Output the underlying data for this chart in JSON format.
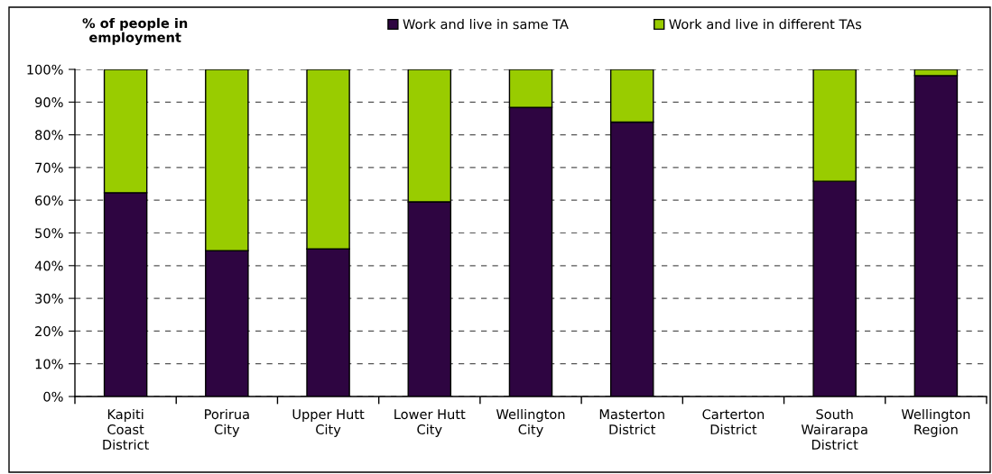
{
  "chart_data": {
    "type": "bar",
    "stacked": true,
    "ylabel": "% of people in\nemployment",
    "categories": [
      "Kapiti\nCoast\nDistrict",
      "Porirua\nCity",
      "Upper Hutt\nCity",
      "Lower Hutt\nCity",
      "Wellington\nCity",
      "Masterton\nDistrict",
      "Carterton\nDistrict",
      "South\nWairarapa\nDistrict",
      "Wellington\nRegion"
    ],
    "series": [
      {
        "name": "Work and live in same TA",
        "color": "#2e0541",
        "values": [
          62.3,
          44.6,
          45.1,
          59.5,
          88.4,
          83.9,
          null,
          65.8,
          98.1
        ]
      },
      {
        "name": "Work and live in different TAs",
        "color": "#99cc00",
        "values": [
          37.7,
          55.4,
          54.9,
          40.5,
          11.6,
          16.1,
          null,
          34.2,
          1.9
        ]
      }
    ],
    "ylim": [
      0,
      100
    ],
    "yticks": [
      {
        "value": 0,
        "label": "0%"
      },
      {
        "value": 10,
        "label": "10%"
      },
      {
        "value": 20,
        "label": "20%"
      },
      {
        "value": 30,
        "label": "30%"
      },
      {
        "value": 40,
        "label": "40%"
      },
      {
        "value": 50,
        "label": "50%"
      },
      {
        "value": 60,
        "label": "60%"
      },
      {
        "value": 70,
        "label": "70%"
      },
      {
        "value": 80,
        "label": "80%"
      },
      {
        "value": 90,
        "label": "90%"
      },
      {
        "value": 100,
        "label": "100%"
      }
    ],
    "grid": "y",
    "legend": "top"
  }
}
